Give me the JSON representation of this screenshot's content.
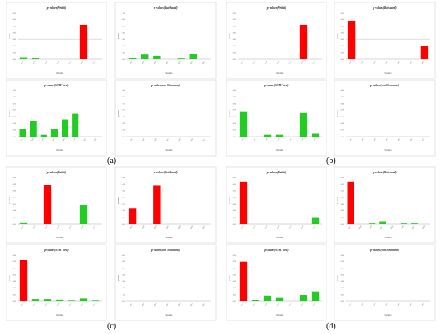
{
  "panel_labels": [
    "(a)",
    "(b)",
    "(c)",
    "(d)"
  ],
  "colors": {
    "significant": "#ff0000",
    "not_significant": "#22cc22",
    "threshold_line": "#bbbbbb",
    "frame": "#d0d0d0"
  },
  "chart_data": [
    {
      "type": "bar",
      "group": "(a)",
      "title": "p-values(Pettitt)",
      "xlabel": "Variable",
      "ylabel": "p-value",
      "categories": [
        "Var1",
        "Var2",
        "Var3",
        "Var4",
        "Var5",
        "Var6",
        "Var7"
      ],
      "values": [
        0.03,
        0.02,
        0.0,
        0.0,
        0.0,
        0.52,
        0.0
      ],
      "significant": [
        false,
        false,
        false,
        false,
        false,
        true,
        false
      ],
      "ylim": [
        0,
        0.7
      ],
      "threshold": 0.3
    },
    {
      "type": "bar",
      "group": "(a)",
      "title": "p-values(Buishand)",
      "xlabel": "Variable",
      "ylabel": "p-value",
      "categories": [
        "Var1",
        "Var2",
        "Var3",
        "Var4",
        "Var5",
        "Var6",
        "Var7"
      ],
      "values": [
        0.02,
        0.07,
        0.05,
        0.0,
        0.01,
        0.08,
        0.0
      ],
      "significant": [
        false,
        false,
        false,
        false,
        false,
        false,
        false
      ],
      "ylim": [
        0,
        0.7
      ],
      "threshold": null
    },
    {
      "type": "bar",
      "group": "(a)",
      "title": "p-values(SNHT test)",
      "xlabel": "Variable",
      "ylabel": "p-value",
      "categories": [
        "Var1",
        "Var2",
        "Var3",
        "Var4",
        "Var5",
        "Var6",
        "Var7",
        "Var8"
      ],
      "values": [
        0.16,
        0.34,
        0.04,
        0.17,
        0.37,
        0.49,
        0.0,
        0.0
      ],
      "significant": [
        false,
        false,
        false,
        false,
        false,
        false,
        false,
        false
      ],
      "ylim": [
        0,
        1.0
      ],
      "threshold": null
    },
    {
      "type": "bar",
      "group": "(a)",
      "title": "p-values(von Neumann)",
      "xlabel": "Variable",
      "ylabel": "p-value",
      "categories": [
        "Var1",
        "Var2",
        "Var3",
        "Var4",
        "Var5",
        "Var6",
        "Var7"
      ],
      "values": [
        0,
        0,
        0,
        0,
        0,
        0,
        0
      ],
      "significant": [
        false,
        false,
        false,
        false,
        false,
        false,
        false
      ],
      "ylim": [
        0,
        1.0
      ],
      "threshold": null
    },
    {
      "type": "bar",
      "group": "(b)",
      "title": "p-values(Pettitt)",
      "xlabel": "Variable",
      "ylabel": "p-value",
      "categories": [
        "Var1",
        "Var2",
        "Var3",
        "Var4",
        "Var5",
        "Var6",
        "Var7"
      ],
      "values": [
        0,
        0,
        0,
        0,
        0,
        0.52,
        0
      ],
      "significant": [
        false,
        false,
        false,
        false,
        false,
        true,
        false
      ],
      "ylim": [
        0,
        0.7
      ],
      "threshold": null
    },
    {
      "type": "bar",
      "group": "(b)",
      "title": "p-values(Buishand)",
      "xlabel": "Variable",
      "ylabel": "p-value",
      "categories": [
        "Var1",
        "Var2",
        "Var3",
        "Var4",
        "Var5",
        "Var6",
        "Var7"
      ],
      "values": [
        0.58,
        0,
        0,
        0,
        0,
        0,
        0.2
      ],
      "significant": [
        true,
        false,
        false,
        false,
        false,
        false,
        true
      ],
      "ylim": [
        0,
        0.7
      ],
      "threshold": 0.3
    },
    {
      "type": "bar",
      "group": "(b)",
      "title": "p-values(SNHT test)",
      "xlabel": "Variable",
      "ylabel": "p-value",
      "categories": [
        "Var1",
        "Var2",
        "Var3",
        "Var4",
        "Var5",
        "Var6",
        "Var7"
      ],
      "values": [
        0.27,
        0,
        0.02,
        0.02,
        0,
        0.26,
        0.03
      ],
      "significant": [
        false,
        false,
        false,
        false,
        false,
        false,
        false
      ],
      "ylim": [
        0,
        0.5
      ],
      "threshold": null
    },
    {
      "type": "bar",
      "group": "(b)",
      "title": "p-values(von Neumann)",
      "xlabel": "Variable",
      "ylabel": "p-value",
      "categories": [
        "Var1",
        "Var2",
        "Var3",
        "Var4",
        "Var5",
        "Var6",
        "Var7"
      ],
      "values": [
        0,
        0,
        0,
        0,
        0,
        0,
        0
      ],
      "significant": [
        false,
        false,
        false,
        false,
        false,
        false,
        false
      ],
      "ylim": [
        0,
        0.5
      ],
      "threshold": null
    },
    {
      "type": "bar",
      "group": "(c)",
      "title": "p-values(Pettitt)",
      "xlabel": "Variable",
      "ylabel": "p-value",
      "categories": [
        "Var1",
        "Var2",
        "Var3",
        "Var4",
        "Var5",
        "Var6",
        "Var7"
      ],
      "values": [
        0.01,
        0,
        0.42,
        0,
        0,
        0.2,
        0
      ],
      "significant": [
        false,
        false,
        true,
        false,
        false,
        false,
        false
      ],
      "ylim": [
        0,
        0.5
      ],
      "threshold": null
    },
    {
      "type": "bar",
      "group": "(c)",
      "title": "p-values(Buishand)",
      "xlabel": "Variable",
      "ylabel": "p-value",
      "categories": [
        "Var1",
        "Var2",
        "Var3",
        "Var4",
        "Var5",
        "Var6",
        "Var7"
      ],
      "values": [
        0.17,
        0,
        0.41,
        0,
        0,
        0,
        0
      ],
      "significant": [
        true,
        false,
        true,
        false,
        false,
        false,
        false
      ],
      "ylim": [
        0,
        0.5
      ],
      "threshold": null
    },
    {
      "type": "bar",
      "group": "(c)",
      "title": "p-values(SNHT test)",
      "xlabel": "Variable",
      "ylabel": "p-value",
      "categories": [
        "Var1",
        "Var2",
        "Var3",
        "Var4",
        "Var5",
        "Var6",
        "Var7"
      ],
      "values": [
        0.71,
        0.04,
        0.04,
        0.03,
        0.01,
        0.05,
        0.01
      ],
      "significant": [
        true,
        false,
        false,
        false,
        false,
        false,
        false
      ],
      "ylim": [
        0,
        0.8
      ],
      "threshold": null
    },
    {
      "type": "bar",
      "group": "(c)",
      "title": "p-values(von Neumann)",
      "xlabel": "Variable",
      "ylabel": "p-value",
      "categories": [
        "Var1",
        "Var2",
        "Var3",
        "Var4",
        "Var5",
        "Var6",
        "Var7"
      ],
      "values": [
        0,
        0,
        0,
        0,
        0,
        0,
        0
      ],
      "significant": [
        false,
        false,
        false,
        false,
        false,
        false,
        false
      ],
      "ylim": [
        0,
        0.8
      ],
      "threshold": null
    },
    {
      "type": "bar",
      "group": "(d)",
      "title": "p-values(Pettitt)",
      "xlabel": "Variable",
      "ylabel": "p-value",
      "categories": [
        "Var1",
        "Var2",
        "Var3",
        "Var4",
        "Var5",
        "Var6",
        "Var7"
      ],
      "values": [
        0.63,
        0,
        0,
        0,
        0,
        0,
        0.09
      ],
      "significant": [
        true,
        false,
        false,
        false,
        false,
        false,
        false
      ],
      "ylim": [
        0,
        0.7
      ],
      "threshold": null
    },
    {
      "type": "bar",
      "group": "(d)",
      "title": "p-values(Buishand)",
      "xlabel": "Variable",
      "ylabel": "p-value",
      "categories": [
        "Var1",
        "Var2",
        "Var3",
        "Var4",
        "Var5",
        "Var6",
        "Var7",
        "Var8"
      ],
      "values": [
        0.63,
        0,
        0.01,
        0.03,
        0,
        0.01,
        0.01,
        0
      ],
      "significant": [
        true,
        false,
        false,
        false,
        false,
        false,
        false,
        false
      ],
      "ylim": [
        0,
        0.7
      ],
      "threshold": null
    },
    {
      "type": "bar",
      "group": "(d)",
      "title": "p-values(SNHT test)",
      "xlabel": "Variable",
      "ylabel": "p-value",
      "categories": [
        "Var1",
        "Var2",
        "Var3",
        "Var4",
        "Var5",
        "Var6",
        "Var7"
      ],
      "values": [
        0.68,
        0.02,
        0.1,
        0.06,
        0,
        0.11,
        0.17
      ],
      "significant": [
        true,
        false,
        false,
        false,
        false,
        false,
        false
      ],
      "ylim": [
        0,
        0.8
      ],
      "threshold": null
    },
    {
      "type": "bar",
      "group": "(d)",
      "title": "p-values(von Neumann)",
      "xlabel": "Variable",
      "ylabel": "p-value",
      "categories": [
        "Var1",
        "Var2",
        "Var3",
        "Var4",
        "Var5",
        "Var6",
        "Var7"
      ],
      "values": [
        0,
        0,
        0,
        0,
        0,
        0,
        0
      ],
      "significant": [
        false,
        false,
        false,
        false,
        false,
        false,
        false
      ],
      "ylim": [
        0,
        0.8
      ],
      "threshold": null
    }
  ]
}
